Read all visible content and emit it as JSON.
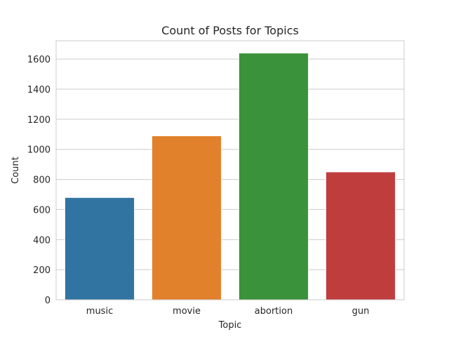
{
  "chart_data": {
    "type": "bar",
    "title": "Count of Posts for Topics",
    "xlabel": "Topic",
    "ylabel": "Count",
    "categories": [
      "music",
      "movie",
      "abortion",
      "gun"
    ],
    "values": [
      680,
      1090,
      1640,
      850
    ],
    "colors": [
      "#3274a1",
      "#e1812c",
      "#3a923a",
      "#c03d3e"
    ],
    "ylim": [
      0,
      1722
    ],
    "yticks": [
      0,
      200,
      400,
      600,
      800,
      1000,
      1200,
      1400,
      1600
    ],
    "grid": "horizontal",
    "legend": "none"
  }
}
